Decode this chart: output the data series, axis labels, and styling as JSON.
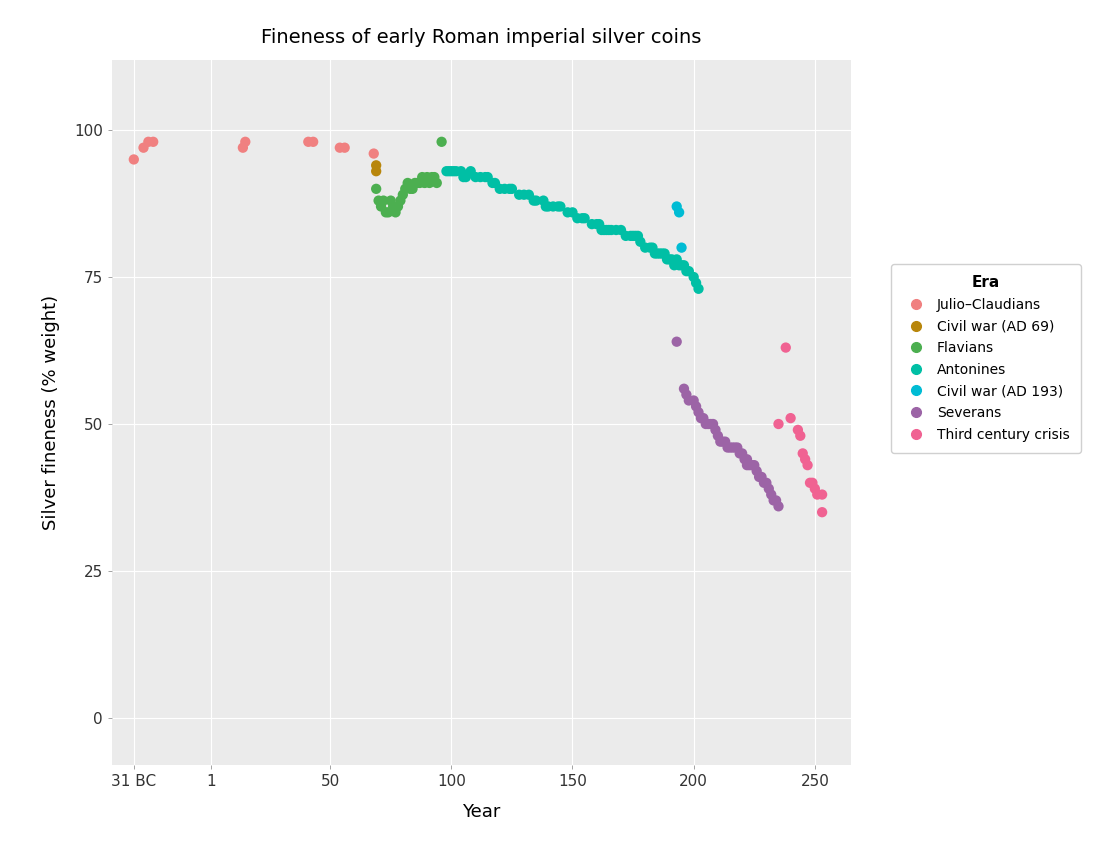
{
  "title": "Fineness of early Roman imperial silver coins",
  "xlabel": "Year",
  "ylabel": "Silver fineness (% weight)",
  "background_color": "#EBEBEB",
  "grid_color": "#FFFFFF",
  "series": [
    {
      "era": "Julio–Claudians",
      "color": "#F08080",
      "points": [
        [
          -31,
          95
        ],
        [
          -27,
          97
        ],
        [
          -25,
          98
        ],
        [
          -23,
          98
        ],
        [
          14,
          97
        ],
        [
          15,
          98
        ],
        [
          41,
          98
        ],
        [
          43,
          98
        ],
        [
          54,
          97
        ],
        [
          56,
          97
        ],
        [
          68,
          96
        ]
      ]
    },
    {
      "era": "Civil war (AD 69)",
      "color": "#B8860B",
      "points": [
        [
          69,
          93
        ],
        [
          69,
          94
        ]
      ]
    },
    {
      "era": "Flavians",
      "color": "#4CAF50",
      "points": [
        [
          69,
          90
        ],
        [
          70,
          88
        ],
        [
          71,
          87
        ],
        [
          72,
          88
        ],
        [
          73,
          86
        ],
        [
          74,
          86
        ],
        [
          75,
          88
        ],
        [
          76,
          87
        ],
        [
          77,
          86
        ],
        [
          78,
          87
        ],
        [
          79,
          88
        ],
        [
          80,
          89
        ],
        [
          81,
          90
        ],
        [
          82,
          91
        ],
        [
          83,
          90
        ],
        [
          84,
          90
        ],
        [
          85,
          91
        ],
        [
          86,
          91
        ],
        [
          87,
          91
        ],
        [
          88,
          92
        ],
        [
          89,
          91
        ],
        [
          90,
          92
        ],
        [
          91,
          91
        ],
        [
          92,
          92
        ],
        [
          93,
          92
        ],
        [
          94,
          91
        ],
        [
          96,
          98
        ]
      ]
    },
    {
      "era": "Antonines",
      "color": "#00BFA5",
      "points": [
        [
          98,
          93
        ],
        [
          99,
          93
        ],
        [
          100,
          93
        ],
        [
          101,
          93
        ],
        [
          102,
          93
        ],
        [
          104,
          93
        ],
        [
          105,
          92
        ],
        [
          106,
          92
        ],
        [
          108,
          93
        ],
        [
          110,
          92
        ],
        [
          112,
          92
        ],
        [
          114,
          92
        ],
        [
          115,
          92
        ],
        [
          117,
          91
        ],
        [
          118,
          91
        ],
        [
          120,
          90
        ],
        [
          122,
          90
        ],
        [
          124,
          90
        ],
        [
          125,
          90
        ],
        [
          128,
          89
        ],
        [
          130,
          89
        ],
        [
          132,
          89
        ],
        [
          134,
          88
        ],
        [
          135,
          88
        ],
        [
          138,
          88
        ],
        [
          139,
          87
        ],
        [
          140,
          87
        ],
        [
          142,
          87
        ],
        [
          144,
          87
        ],
        [
          145,
          87
        ],
        [
          148,
          86
        ],
        [
          150,
          86
        ],
        [
          152,
          85
        ],
        [
          154,
          85
        ],
        [
          155,
          85
        ],
        [
          158,
          84
        ],
        [
          160,
          84
        ],
        [
          161,
          84
        ],
        [
          162,
          83
        ],
        [
          163,
          83
        ],
        [
          164,
          83
        ],
        [
          165,
          83
        ],
        [
          166,
          83
        ],
        [
          168,
          83
        ],
        [
          170,
          83
        ],
        [
          172,
          82
        ],
        [
          174,
          82
        ],
        [
          175,
          82
        ],
        [
          176,
          82
        ],
        [
          177,
          82
        ],
        [
          178,
          81
        ],
        [
          180,
          80
        ],
        [
          182,
          80
        ],
        [
          183,
          80
        ],
        [
          184,
          79
        ],
        [
          185,
          79
        ],
        [
          186,
          79
        ],
        [
          187,
          79
        ],
        [
          188,
          79
        ],
        [
          189,
          78
        ],
        [
          190,
          78
        ],
        [
          191,
          78
        ],
        [
          192,
          77
        ],
        [
          193,
          78
        ],
        [
          194,
          77
        ],
        [
          195,
          77
        ],
        [
          196,
          77
        ],
        [
          197,
          76
        ],
        [
          198,
          76
        ],
        [
          200,
          75
        ],
        [
          201,
          74
        ],
        [
          202,
          73
        ]
      ]
    },
    {
      "era": "Civil war (AD 193)",
      "color": "#00BCD4",
      "points": [
        [
          193,
          87
        ],
        [
          194,
          86
        ],
        [
          195,
          80
        ]
      ]
    },
    {
      "era": "Severans",
      "color": "#9C64A6",
      "points": [
        [
          193,
          64
        ],
        [
          196,
          56
        ],
        [
          197,
          55
        ],
        [
          198,
          54
        ],
        [
          200,
          54
        ],
        [
          201,
          53
        ],
        [
          202,
          52
        ],
        [
          203,
          51
        ],
        [
          204,
          51
        ],
        [
          205,
          50
        ],
        [
          206,
          50
        ],
        [
          207,
          50
        ],
        [
          208,
          50
        ],
        [
          209,
          49
        ],
        [
          210,
          48
        ],
        [
          211,
          47
        ],
        [
          212,
          47
        ],
        [
          213,
          47
        ],
        [
          214,
          46
        ],
        [
          215,
          46
        ],
        [
          216,
          46
        ],
        [
          217,
          46
        ],
        [
          218,
          46
        ],
        [
          219,
          45
        ],
        [
          220,
          45
        ],
        [
          221,
          44
        ],
        [
          222,
          44
        ],
        [
          222,
          43
        ],
        [
          223,
          43
        ],
        [
          224,
          43
        ],
        [
          225,
          43
        ],
        [
          226,
          42
        ],
        [
          227,
          41
        ],
        [
          228,
          41
        ],
        [
          229,
          40
        ],
        [
          230,
          40
        ],
        [
          231,
          39
        ],
        [
          232,
          38
        ],
        [
          233,
          37
        ],
        [
          234,
          37
        ],
        [
          235,
          36
        ]
      ]
    },
    {
      "era": "Third century crisis",
      "color": "#F06292",
      "points": [
        [
          235,
          50
        ],
        [
          238,
          63
        ],
        [
          240,
          51
        ],
        [
          243,
          49
        ],
        [
          244,
          48
        ],
        [
          245,
          45
        ],
        [
          246,
          44
        ],
        [
          247,
          43
        ],
        [
          248,
          40
        ],
        [
          249,
          40
        ],
        [
          250,
          39
        ],
        [
          251,
          38
        ],
        [
          253,
          38
        ],
        [
          253,
          35
        ]
      ]
    }
  ],
  "xlim": [
    -40,
    265
  ],
  "ylim": [
    -8,
    112
  ],
  "xticks": [
    -31,
    1,
    50,
    100,
    150,
    200,
    250
  ],
  "xticklabels": [
    "31 BC",
    "1",
    "50",
    "100",
    "150",
    "200",
    "250"
  ],
  "yticks": [
    0,
    25,
    50,
    75,
    100
  ],
  "marker_size": 55,
  "figsize": [
    11.2,
    8.5
  ]
}
